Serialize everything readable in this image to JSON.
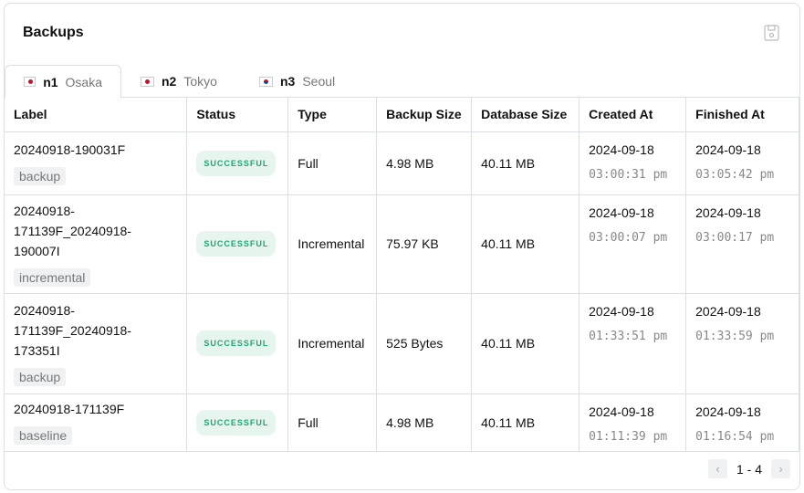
{
  "title": "Backups",
  "save_icon": "save-icon",
  "tabs": [
    {
      "id": "n1",
      "city": "Osaka",
      "flag": "jp"
    },
    {
      "id": "n2",
      "city": "Tokyo",
      "flag": "jp"
    },
    {
      "id": "n3",
      "city": "Seoul",
      "flag": "kr"
    }
  ],
  "columns": [
    "Label",
    "Status",
    "Type",
    "Backup Size",
    "Database Size",
    "Created At",
    "Finished At"
  ],
  "rows": [
    {
      "label": "20240918-190031F",
      "tag": "backup",
      "status": "SUCCESSFUL",
      "type": "Full",
      "backup_size": "4.98 MB",
      "db_size": "40.11 MB",
      "created_date": "2024-09-18",
      "created_time": "03:00:31 pm",
      "finished_date": "2024-09-18",
      "finished_time": "03:05:42 pm"
    },
    {
      "label": "20240918-171139F_20240918-190007I",
      "tag": "incremental",
      "status": "SUCCESSFUL",
      "type": "Incremental",
      "backup_size": "75.97 KB",
      "db_size": "40.11 MB",
      "created_date": "2024-09-18",
      "created_time": "03:00:07 pm",
      "finished_date": "2024-09-18",
      "finished_time": "03:00:17 pm"
    },
    {
      "label": "20240918-171139F_20240918-173351I",
      "tag": "backup",
      "status": "SUCCESSFUL",
      "type": "Incremental",
      "backup_size": "525 Bytes",
      "db_size": "40.11 MB",
      "created_date": "2024-09-18",
      "created_time": "01:33:51 pm",
      "finished_date": "2024-09-18",
      "finished_time": "01:33:59 pm"
    },
    {
      "label": "20240918-171139F",
      "tag": "baseline",
      "status": "SUCCESSFUL",
      "type": "Full",
      "backup_size": "4.98 MB",
      "db_size": "40.11 MB",
      "created_date": "2024-09-18",
      "created_time": "01:11:39 pm",
      "finished_date": "2024-09-18",
      "finished_time": "01:16:54 pm"
    }
  ],
  "pagination": {
    "range": "1 - 4"
  }
}
